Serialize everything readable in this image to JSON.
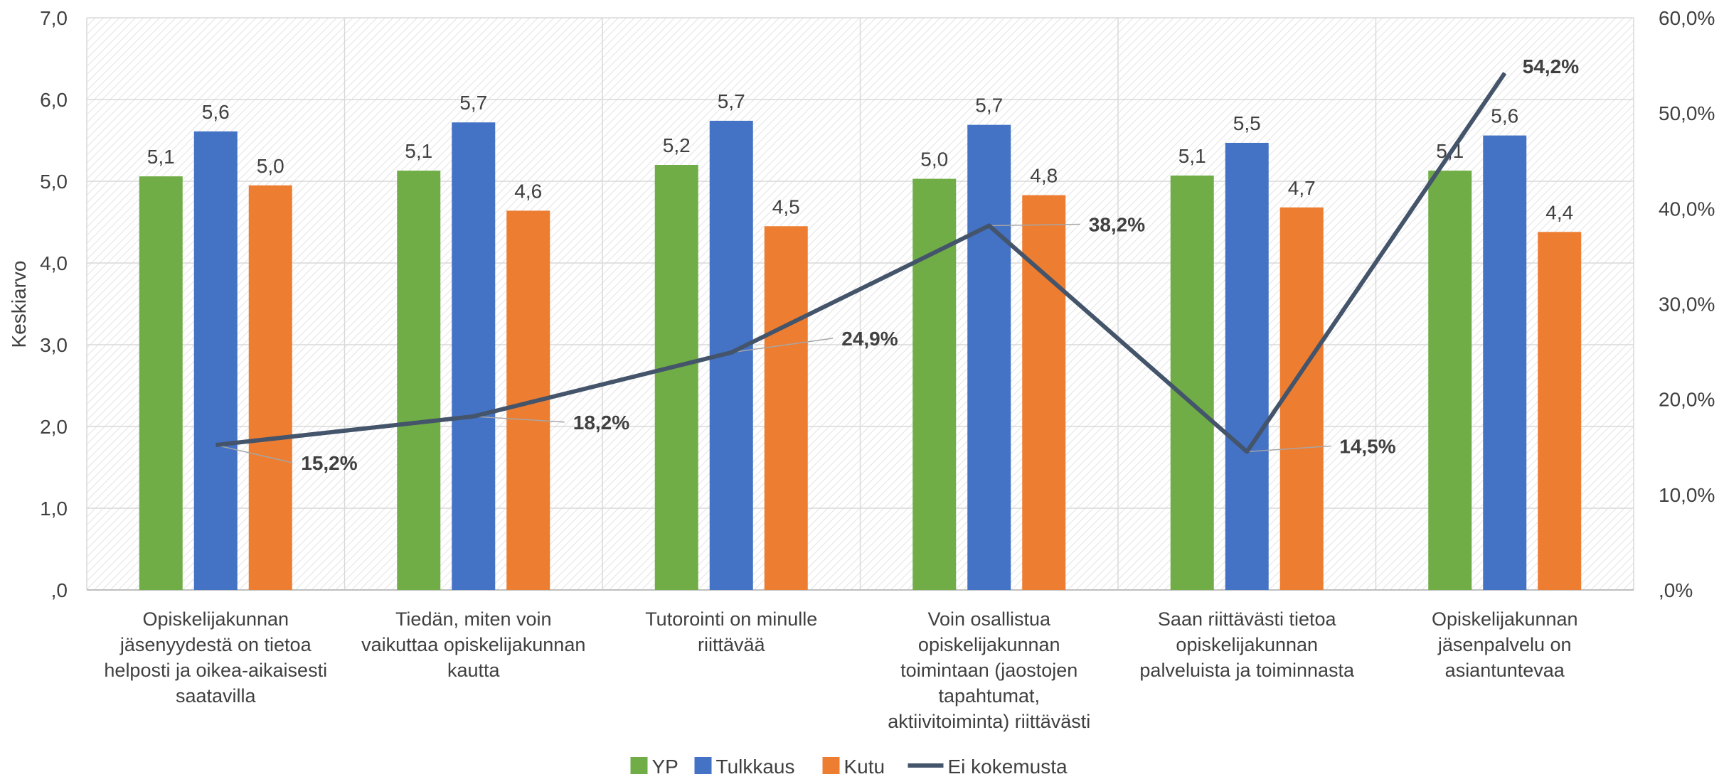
{
  "chart_data": {
    "type": "bar",
    "categories": [
      [
        "Opiskelijakunnan",
        "jäsenyydestä on tietoa",
        "helposti ja oikea-aikaisesti",
        "saatavilla"
      ],
      [
        "Tiedän, miten voin",
        "vaikuttaa opiskelijakunnan",
        "kautta"
      ],
      [
        "Tutorointi on minulle",
        "riittävää"
      ],
      [
        "Voin osallistua",
        "opiskelijakunnan",
        "toimintaan (jaostojen",
        "tapahtumat,",
        "aktiivitoiminta) riittävästi"
      ],
      [
        "Saan riittävästi tietoa",
        "opiskelijakunnan",
        "palveluista ja toiminnasta"
      ],
      [
        "Opiskelijakunnan",
        "jäsenpalvelu on",
        "asiantuntevaa"
      ]
    ],
    "series": [
      {
        "name": "YP",
        "color": "#70AD47",
        "values": [
          5.06,
          5.13,
          5.2,
          5.03,
          5.07,
          5.13
        ],
        "labels": [
          "5,1",
          "5,1",
          "5,2",
          "5,0",
          "5,1",
          "5,1"
        ]
      },
      {
        "name": "Tulkkaus",
        "color": "#4472C4",
        "values": [
          5.61,
          5.72,
          5.74,
          5.69,
          5.47,
          5.56
        ],
        "labels": [
          "5,6",
          "5,7",
          "5,7",
          "5,7",
          "5,5",
          "5,6"
        ]
      },
      {
        "name": "Kutu",
        "color": "#ED7D31",
        "values": [
          4.95,
          4.64,
          4.45,
          4.83,
          4.68,
          4.38
        ],
        "labels": [
          "5,0",
          "4,6",
          "4,5",
          "4,8",
          "4,7",
          "4,4"
        ]
      }
    ],
    "line_series": {
      "name": "Ei kokemusta",
      "color": "#44546A",
      "axis": "secondary",
      "values": [
        15.2,
        18.2,
        24.9,
        38.2,
        14.5,
        54.2
      ],
      "labels": [
        "15,2%",
        "18,2%",
        "24,9%",
        "38,2%",
        "14,5%",
        "54,2%"
      ]
    },
    "ylabel": "Keskiarvo",
    "ylim": [
      0,
      7
    ],
    "y_ticks": [
      ",0",
      "1,0",
      "2,0",
      "3,0",
      "4,0",
      "5,0",
      "6,0",
      "7,0"
    ],
    "y2lim": [
      0,
      60
    ],
    "y2_ticks": [
      ",0%",
      "10,0%",
      "20,0%",
      "30,0%",
      "40,0%",
      "50,0%",
      "60,0%"
    ],
    "grid": true,
    "legend_position": "bottom"
  }
}
